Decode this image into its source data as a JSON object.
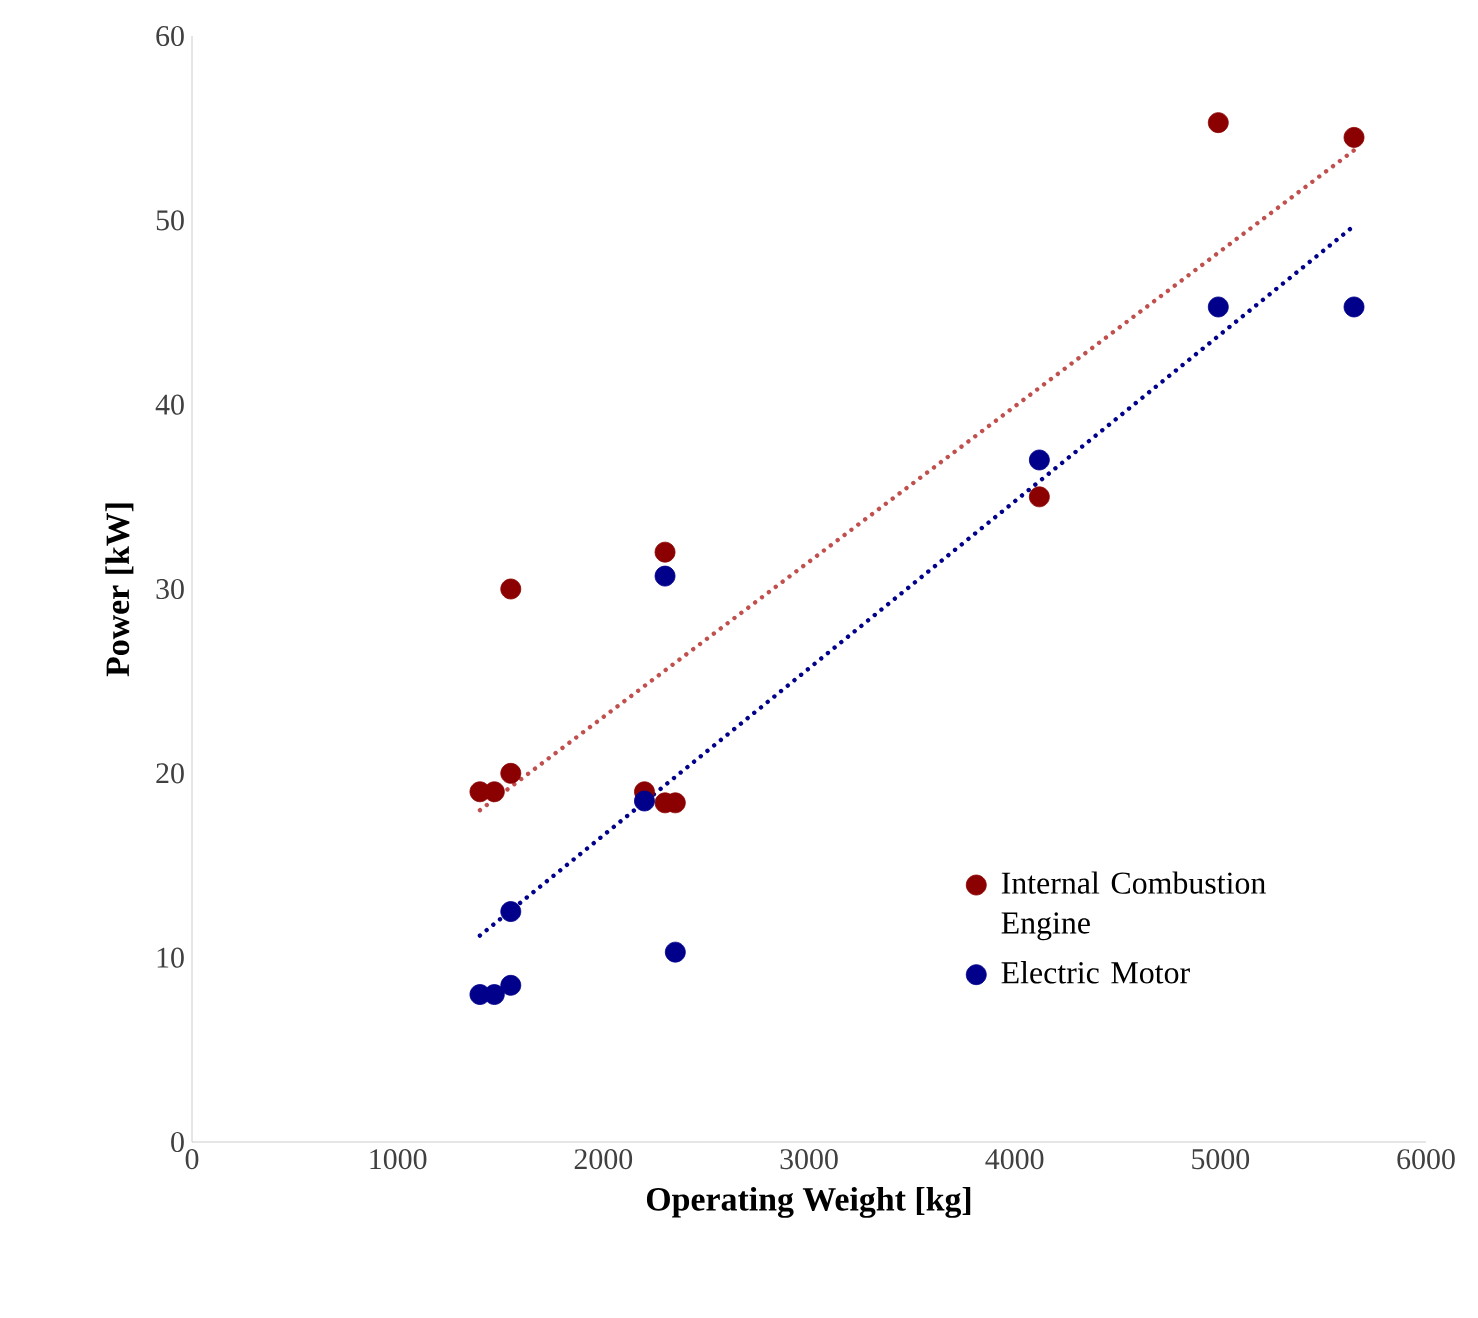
{
  "chart_data": {
    "type": "scatter",
    "xlabel": "Operating Weight [kg]",
    "ylabel": "Power [kW]",
    "xlim": [
      0,
      6000
    ],
    "xticks": [
      0,
      1000,
      2000,
      3000,
      4000,
      5000,
      6000
    ],
    "ylim": [
      0,
      60
    ],
    "yticks": [
      0,
      10,
      20,
      30,
      40,
      50,
      60
    ],
    "grid": false,
    "legend": "right",
    "marker": "circle",
    "series": [
      {
        "name": "Internal Combustion Engine",
        "color": "#8b0000",
        "x": [
          1400,
          1470,
          1550,
          1550,
          2200,
          2300,
          2300,
          2350,
          4120,
          4990,
          5650
        ],
        "values": [
          19,
          19,
          20,
          30,
          19,
          32,
          18.4,
          18.4,
          35,
          55.3,
          54.5
        ]
      },
      {
        "name": "Electric Motor",
        "color": "#00008b",
        "x": [
          1400,
          1470,
          1550,
          1550,
          2200,
          2300,
          2350,
          4120,
          4990,
          5650
        ],
        "values": [
          8,
          8,
          12.5,
          8.5,
          18.5,
          30.7,
          10.3,
          37,
          45.3,
          45.3
        ]
      },
      {
        "type": "line",
        "marker": "none",
        "line_style": "dotted",
        "color": "#c0504d",
        "x": [
          1400,
          5650
        ],
        "values": [
          18,
          53.8
        ]
      },
      {
        "type": "line",
        "marker": "none",
        "line_style": "dotted",
        "color": "#00008b",
        "x": [
          1400,
          5650
        ],
        "values": [
          11.2,
          49.7
        ]
      }
    ]
  }
}
